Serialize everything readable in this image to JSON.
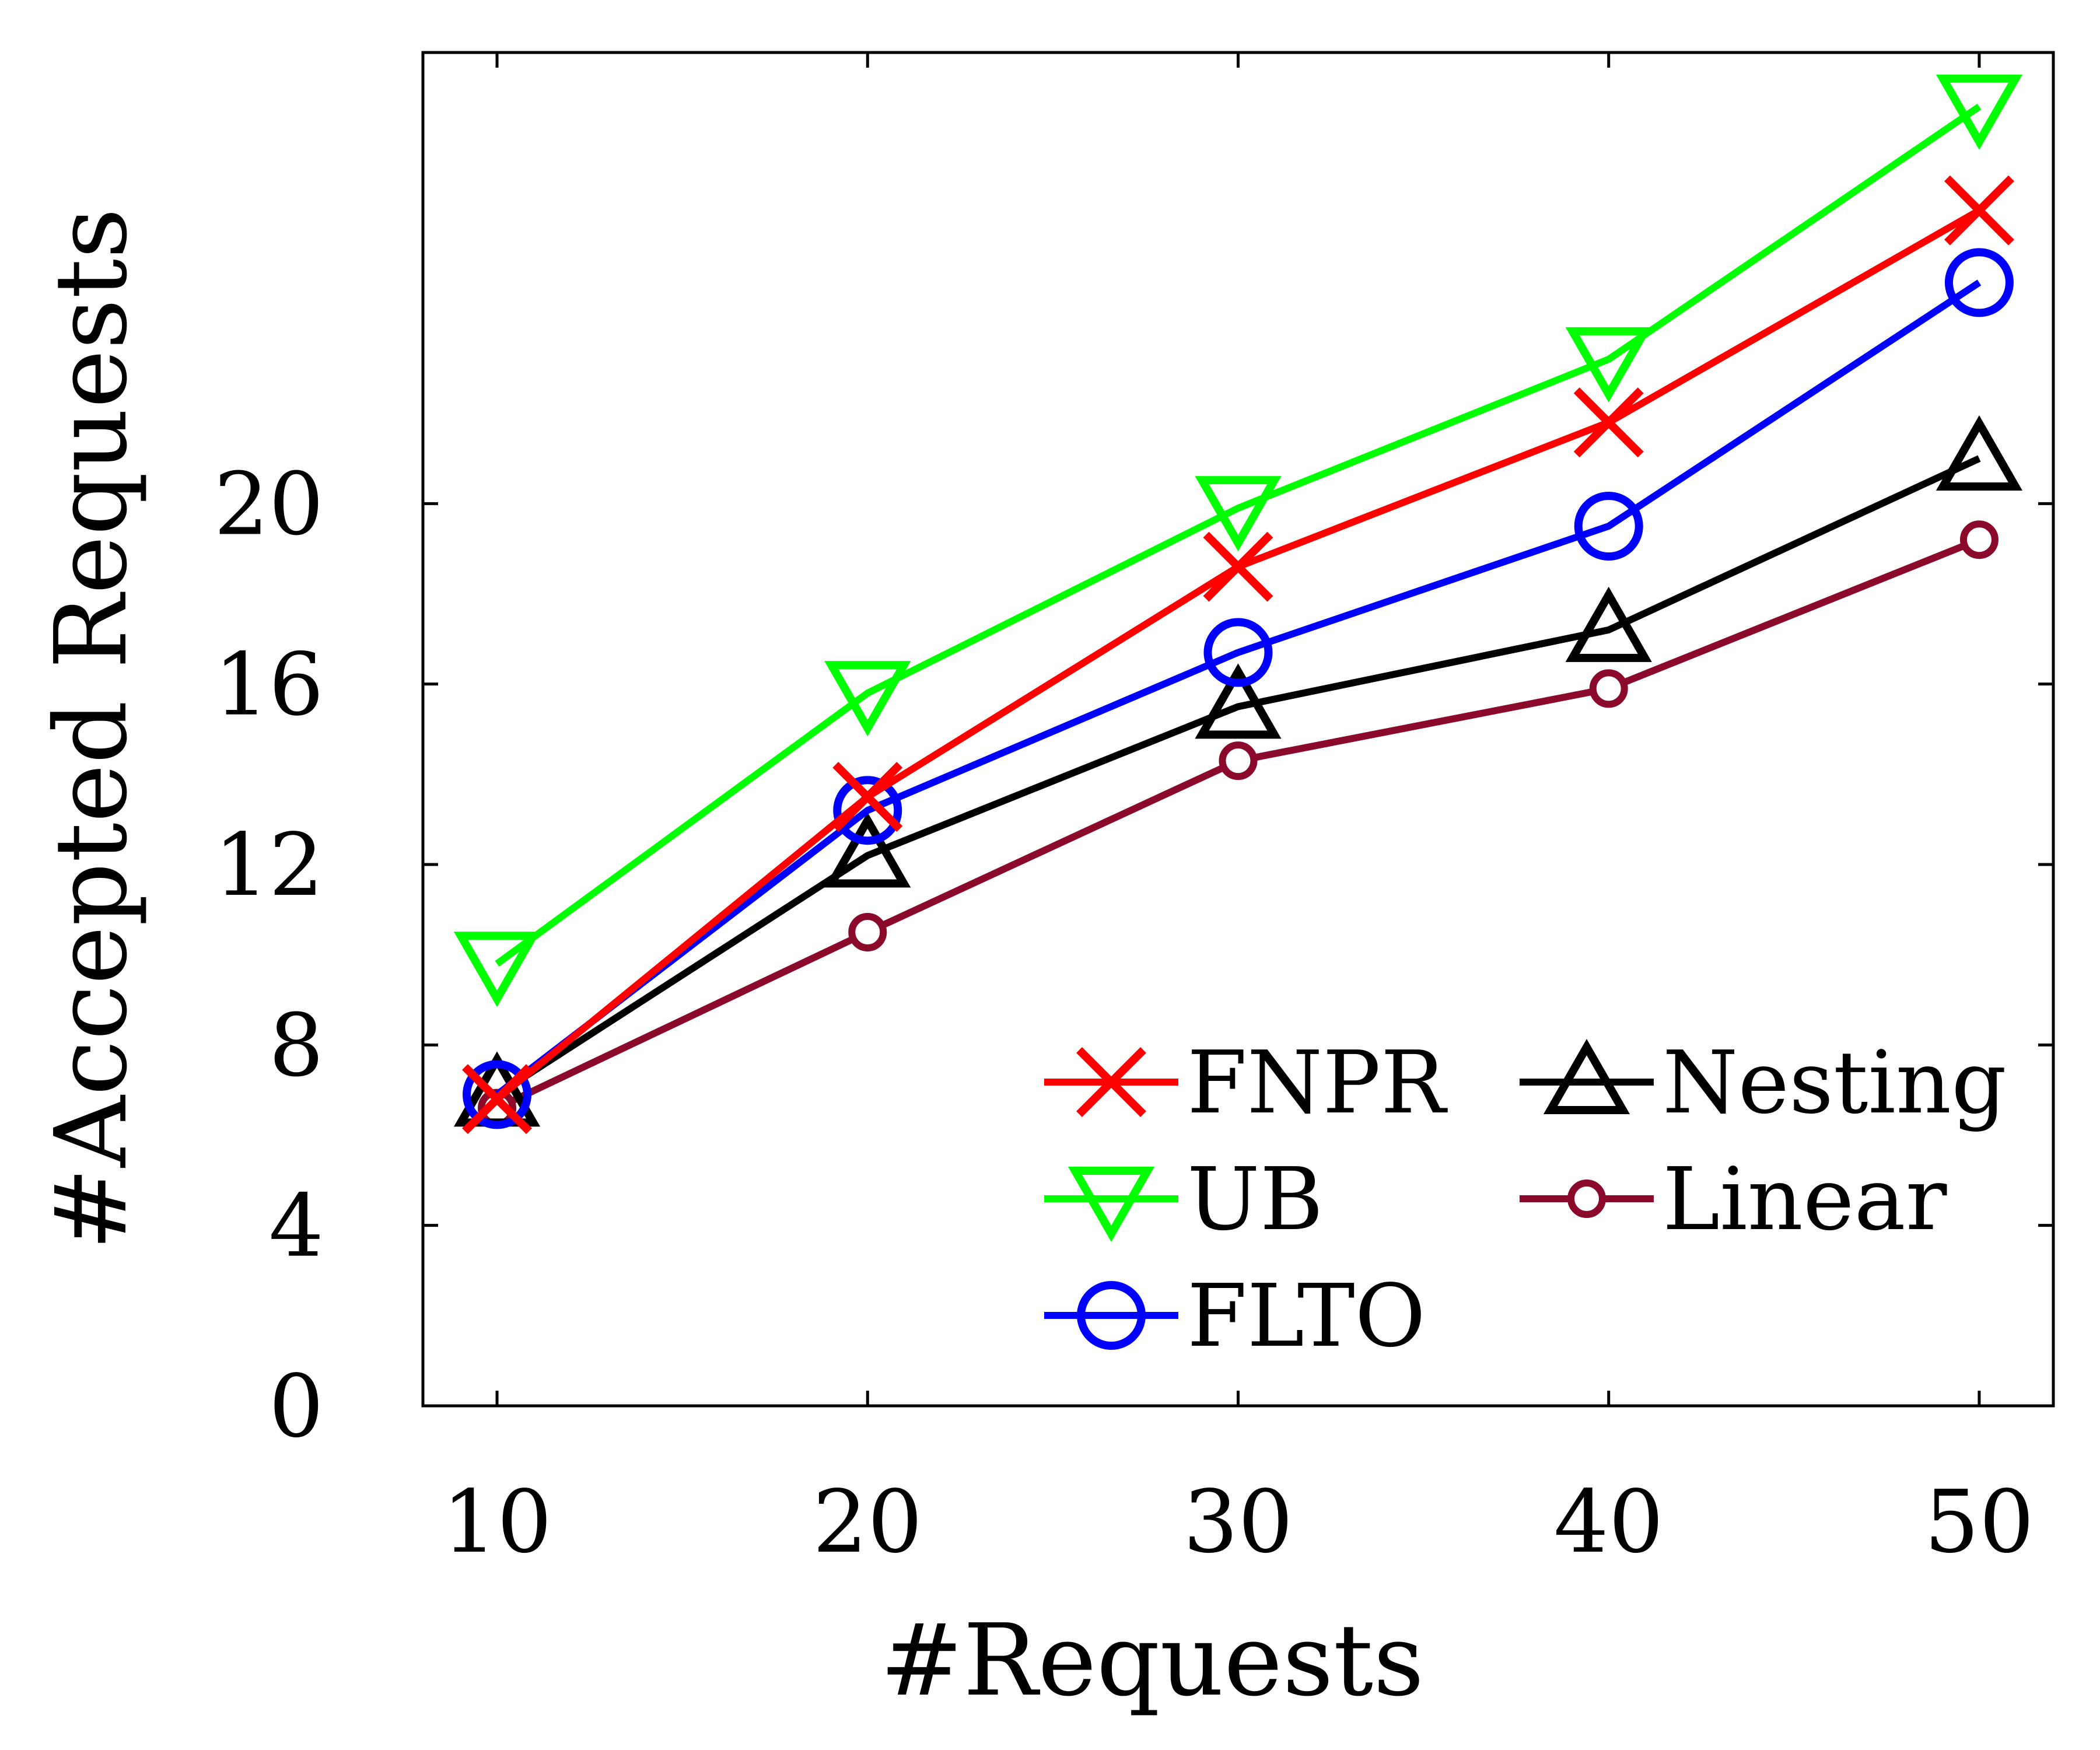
{
  "chart_data": {
    "type": "line",
    "title": "",
    "xlabel": "#Requests",
    "ylabel": "#Accepted Requests",
    "x": [
      10,
      20,
      30,
      40,
      50
    ],
    "xlim": [
      8,
      52
    ],
    "ylim": [
      0,
      30
    ],
    "yticks": [
      0,
      4,
      8,
      12,
      16,
      20
    ],
    "grid": false,
    "legend_position": "bottom-right",
    "series": [
      {
        "name": "FNPR",
        "color": "#ff0000",
        "marker": "x",
        "values": [
          6.8,
          13.5,
          18.6,
          21.8,
          26.5
        ]
      },
      {
        "name": "UB",
        "color": "#00ff00",
        "marker": "triangle-down",
        "values": [
          9.8,
          15.8,
          19.9,
          23.2,
          28.8
        ]
      },
      {
        "name": "FLTO",
        "color": "#0000ff",
        "marker": "circle",
        "values": [
          6.9,
          13.2,
          16.7,
          19.5,
          24.9
        ]
      },
      {
        "name": "Nesting",
        "color": "#000000",
        "marker": "triangle-up",
        "values": [
          6.9,
          12.2,
          15.5,
          17.2,
          21.0
        ]
      },
      {
        "name": "Linear",
        "color": "#8b0a2b",
        "marker": "small-circle",
        "values": [
          6.6,
          10.5,
          14.3,
          15.9,
          19.2
        ]
      }
    ]
  }
}
